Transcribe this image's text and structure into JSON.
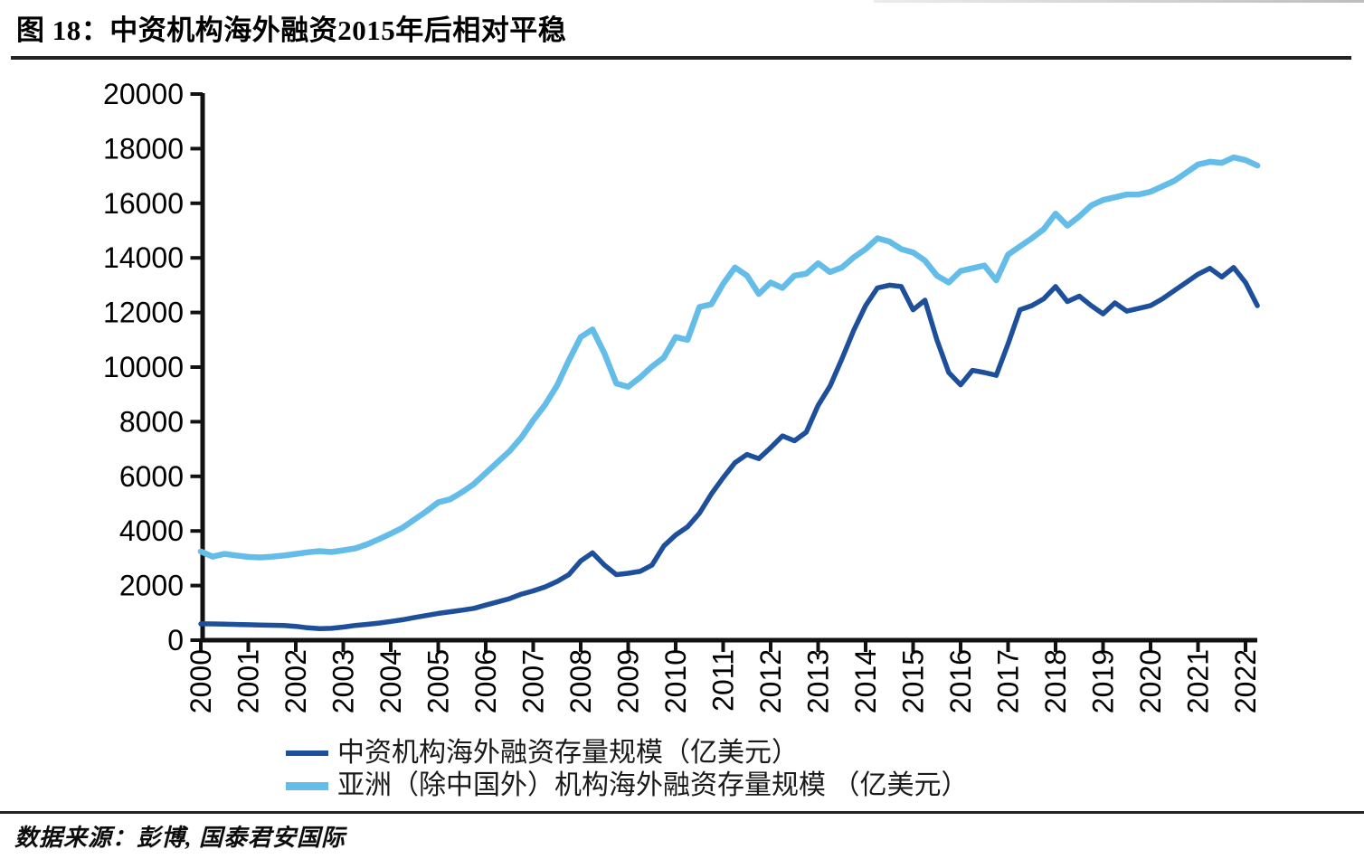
{
  "header": {
    "title": "图 18：中资机构海外融资2015年后相对平稳"
  },
  "footer": {
    "source": "数据来源：彭博, 国泰君安国际"
  },
  "chart_data": {
    "type": "line",
    "title": "图 18：中资机构海外融资2015年后相对平稳",
    "xlabel": "",
    "ylabel": "",
    "unit": "亿美元",
    "ylim": [
      0,
      20000
    ],
    "yticks": [
      0,
      2000,
      4000,
      6000,
      8000,
      10000,
      12000,
      14000,
      16000,
      18000,
      20000
    ],
    "x_tick_labels": [
      "2000",
      "2001",
      "2002",
      "2003",
      "2004",
      "2005",
      "2006",
      "2007",
      "2008",
      "2009",
      "2010",
      "2011",
      "2012",
      "2013",
      "2014",
      "2015",
      "2016",
      "2017",
      "2018",
      "2019",
      "2020",
      "2021",
      "2022"
    ],
    "x_start": 2000.0,
    "x_step": 0.25,
    "grid": false,
    "legend_position": "bottom",
    "series": [
      {
        "name": "中资机构海外融资存量规模（亿美元）",
        "color": "#1e4f9b",
        "values": [
          600,
          595,
          585,
          575,
          565,
          555,
          545,
          535,
          505,
          455,
          420,
          435,
          480,
          540,
          580,
          625,
          685,
          750,
          830,
          905,
          980,
          1040,
          1100,
          1165,
          1285,
          1400,
          1520,
          1685,
          1805,
          1950,
          2150,
          2400,
          2900,
          3200,
          2750,
          2400,
          2450,
          2520,
          2750,
          3450,
          3850,
          4150,
          4650,
          5350,
          5950,
          6500,
          6800,
          6650,
          7050,
          7480,
          7300,
          7620,
          8600,
          9300,
          10300,
          11350,
          12250,
          12900,
          13000,
          12950,
          12100,
          12450,
          11000,
          9800,
          9350,
          9880,
          9800,
          9700,
          10850,
          12100,
          12250,
          12500,
          12950,
          12400,
          12600,
          12250,
          11950,
          12350,
          12050,
          12150,
          12250,
          12500,
          12800,
          13100,
          13400,
          13620,
          13300,
          13650,
          13100,
          12250
        ]
      },
      {
        "name": "亚洲（除中国外）机构海外融资存量规模 （亿美元）",
        "color": "#64bce8",
        "values": [
          3250,
          3060,
          3160,
          3100,
          3050,
          3030,
          3060,
          3100,
          3160,
          3220,
          3260,
          3230,
          3290,
          3360,
          3510,
          3700,
          3900,
          4120,
          4420,
          4720,
          5050,
          5160,
          5420,
          5720,
          6120,
          6520,
          6920,
          7420,
          8050,
          8620,
          9320,
          10250,
          11100,
          11380,
          10500,
          9400,
          9280,
          9620,
          10020,
          10350,
          11100,
          11000,
          12200,
          12300,
          13050,
          13650,
          13350,
          12680,
          13100,
          12900,
          13350,
          13420,
          13800,
          13480,
          13650,
          14020,
          14320,
          14720,
          14600,
          14320,
          14200,
          13900,
          13350,
          13100,
          13520,
          13620,
          13720,
          13180,
          14120,
          14420,
          14720,
          15050,
          15620,
          15180,
          15520,
          15920,
          16120,
          16220,
          16320,
          16320,
          16420,
          16620,
          16820,
          17120,
          17420,
          17520,
          17480,
          17680,
          17580,
          17380
        ]
      }
    ]
  }
}
